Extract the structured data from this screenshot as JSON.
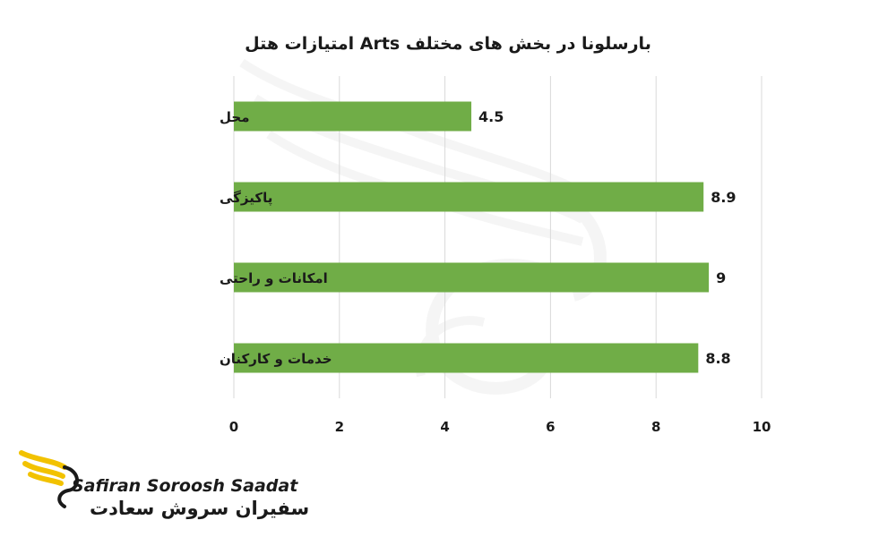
{
  "chart_data": {
    "type": "bar",
    "orientation": "horizontal",
    "title": "امتیازات هتل Arts بارسلونا در بخش های مختلف",
    "categories": [
      "محل",
      "پاکیزگی",
      "امکانات و راحتی",
      "خدمات و کارکنان"
    ],
    "values": [
      4.5,
      8.9,
      9,
      8.8
    ],
    "value_labels": [
      "4.5",
      "8.9",
      "9",
      "8.8"
    ],
    "xlim": [
      0,
      10
    ],
    "x_ticks": [
      0,
      2,
      4,
      6,
      8,
      10
    ],
    "grid": true,
    "bar_color": "#70ad47",
    "xlabel": "",
    "ylabel": ""
  },
  "logo": {
    "latin_text": "Safiran Soroosh Saadat",
    "persian_text": "سفیران سروش سعادت",
    "accent_color": "#f2c200"
  },
  "watermark": {
    "icon": "swan-watermark-icon"
  }
}
